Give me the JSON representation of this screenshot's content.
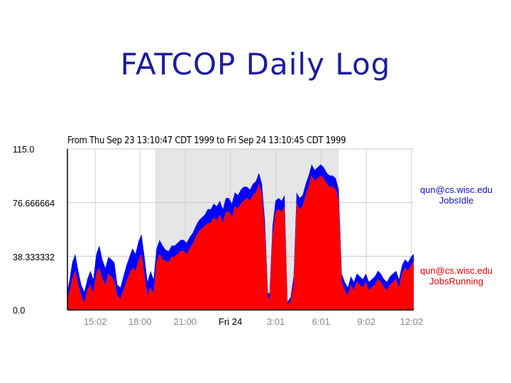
{
  "page": {
    "title": "FATCOP Daily Log"
  },
  "chart_data": {
    "type": "area",
    "stacked": true,
    "title": "From Thu Sep 23 13:10:47 CDT 1999 to Fri Sep 24 13:10:45 CDT 1999",
    "ylim": [
      0,
      115
    ],
    "yticks": [
      "115.0",
      "76.666664",
      "38.333332",
      "0.0"
    ],
    "ytick_values": [
      115,
      76.666664,
      38.333332,
      0
    ],
    "xlim": [
      13.18,
      36.18
    ],
    "xticks": [
      {
        "label": "15:02",
        "x": 15.03,
        "color": "#888888"
      },
      {
        "label": "18:00",
        "x": 18.0,
        "color": "#888888"
      },
      {
        "label": "21:00",
        "x": 21.0,
        "color": "#888888"
      },
      {
        "label": "Fri 24",
        "x": 24.0,
        "color": "#000000"
      },
      {
        "label": "3:01",
        "x": 27.02,
        "color": "#888888"
      },
      {
        "label": "6:01",
        "x": 30.02,
        "color": "#888888"
      },
      {
        "label": "9:02",
        "x": 33.03,
        "color": "#888888"
      },
      {
        "label": "12:02",
        "x": 36.03,
        "color": "#888888"
      }
    ],
    "shaded_region": [
      19.0,
      31.2
    ],
    "grid": true,
    "legend_position": "right",
    "x": [
      13.18,
      13.3,
      13.5,
      13.7,
      13.9,
      14.1,
      14.3,
      14.5,
      14.7,
      14.9,
      15.1,
      15.3,
      15.5,
      15.7,
      15.9,
      16.1,
      16.3,
      16.5,
      16.7,
      16.9,
      17.1,
      17.3,
      17.5,
      17.7,
      17.9,
      18.1,
      18.3,
      18.5,
      18.7,
      18.9,
      19.1,
      19.3,
      19.5,
      19.7,
      19.9,
      20.1,
      20.3,
      20.5,
      20.7,
      20.9,
      21.1,
      21.3,
      21.5,
      21.7,
      21.9,
      22.1,
      22.3,
      22.5,
      22.7,
      22.9,
      23.1,
      23.3,
      23.5,
      23.7,
      23.9,
      24.1,
      24.3,
      24.5,
      24.7,
      24.9,
      25.1,
      25.3,
      25.5,
      25.7,
      25.9,
      26.1,
      26.3,
      26.5,
      26.6,
      26.8,
      27.0,
      27.2,
      27.4,
      27.6,
      27.8,
      28.0,
      28.2,
      28.4,
      28.6,
      28.8,
      29.0,
      29.2,
      29.4,
      29.6,
      29.8,
      30.0,
      30.2,
      30.4,
      30.6,
      30.8,
      31.0,
      31.2,
      31.4,
      31.6,
      31.8,
      32.0,
      32.2,
      32.4,
      32.6,
      32.8,
      33.0,
      33.2,
      33.4,
      33.6,
      33.8,
      34.0,
      34.2,
      34.4,
      34.6,
      34.8,
      35.0,
      35.2,
      35.4,
      35.6,
      35.8,
      36.0,
      36.18
    ],
    "series": [
      {
        "name": "qun@cs.wisc.edu\nJobsRunning",
        "color": "#ff0000",
        "values": [
          8,
          12,
          22,
          28,
          18,
          10,
          5,
          14,
          18,
          12,
          26,
          30,
          22,
          18,
          26,
          24,
          20,
          10,
          8,
          14,
          20,
          26,
          30,
          28,
          35,
          40,
          24,
          10,
          16,
          12,
          34,
          40,
          36,
          35,
          34,
          38,
          38,
          40,
          42,
          42,
          40,
          44,
          47,
          52,
          56,
          58,
          60,
          62,
          62,
          66,
          64,
          68,
          62,
          70,
          70,
          66,
          74,
          72,
          76,
          78,
          80,
          78,
          82,
          84,
          90,
          82,
          55,
          8,
          8,
          52,
          70,
          72,
          70,
          74,
          4,
          6,
          18,
          76,
          72,
          74,
          82,
          88,
          96,
          92,
          94,
          96,
          94,
          90,
          88,
          88,
          86,
          78,
          20,
          14,
          10,
          18,
          14,
          20,
          18,
          16,
          20,
          14,
          16,
          18,
          22,
          20,
          16,
          14,
          18,
          20,
          22,
          16,
          26,
          30,
          28,
          32,
          34
        ],
        "labels": []
      },
      {
        "name": "qun@cs.wisc.edu\nJobsIdle",
        "color": "#0000ff",
        "values": [
          6,
          8,
          12,
          12,
          10,
          8,
          8,
          8,
          10,
          10,
          14,
          16,
          14,
          12,
          12,
          12,
          14,
          8,
          8,
          10,
          12,
          12,
          14,
          12,
          14,
          14,
          14,
          10,
          12,
          10,
          10,
          10,
          10,
          8,
          8,
          8,
          8,
          8,
          8,
          8,
          8,
          8,
          8,
          8,
          8,
          8,
          8,
          10,
          10,
          10,
          10,
          10,
          10,
          10,
          10,
          10,
          10,
          10,
          10,
          10,
          8,
          8,
          8,
          8,
          8,
          8,
          8,
          4,
          4,
          8,
          8,
          8,
          8,
          8,
          2,
          3,
          6,
          8,
          8,
          8,
          8,
          8,
          8,
          8,
          8,
          8,
          8,
          8,
          8,
          8,
          8,
          8,
          6,
          6,
          6,
          6,
          6,
          6,
          6,
          6,
          6,
          6,
          6,
          6,
          6,
          6,
          6,
          6,
          6,
          6,
          6,
          6,
          6,
          6,
          6,
          6,
          6
        ],
        "labels": []
      }
    ]
  }
}
